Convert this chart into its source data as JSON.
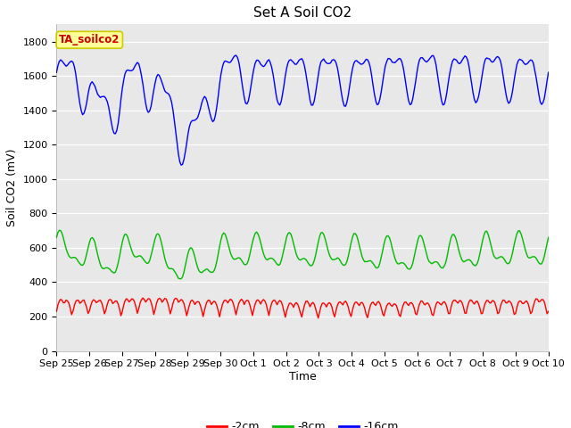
{
  "title": "Set A Soil CO2",
  "ylabel": "Soil CO2 (mV)",
  "xlabel": "Time",
  "legend_label": "TA_soilco2",
  "series_labels": [
    "-2cm",
    "-8cm",
    "-16cm"
  ],
  "series_colors": [
    "#ff0000",
    "#00bb00",
    "#0000ff"
  ],
  "ylim": [
    0,
    1900
  ],
  "yticks": [
    0,
    200,
    400,
    600,
    800,
    1000,
    1200,
    1400,
    1600,
    1800
  ],
  "xtick_labels": [
    "Sep 25",
    "Sep 26",
    "Sep 27",
    "Sep 28",
    "Sep 29",
    "Sep 30",
    "Oct 1",
    "Oct 2",
    "Oct 3",
    "Oct 4",
    "Oct 5",
    "Oct 6",
    "Oct 7",
    "Oct 8",
    "Oct 9",
    "Oct 10"
  ],
  "bg_color": "#ffffff",
  "plot_bg_color": "#e8e8e8",
  "title_fontsize": 11,
  "axis_label_fontsize": 9,
  "tick_fontsize": 8,
  "legend_box_facecolor": "#ffff99",
  "legend_box_edgecolor": "#cccc00",
  "legend_text_color": "#cc0000",
  "line_width": 1.0
}
